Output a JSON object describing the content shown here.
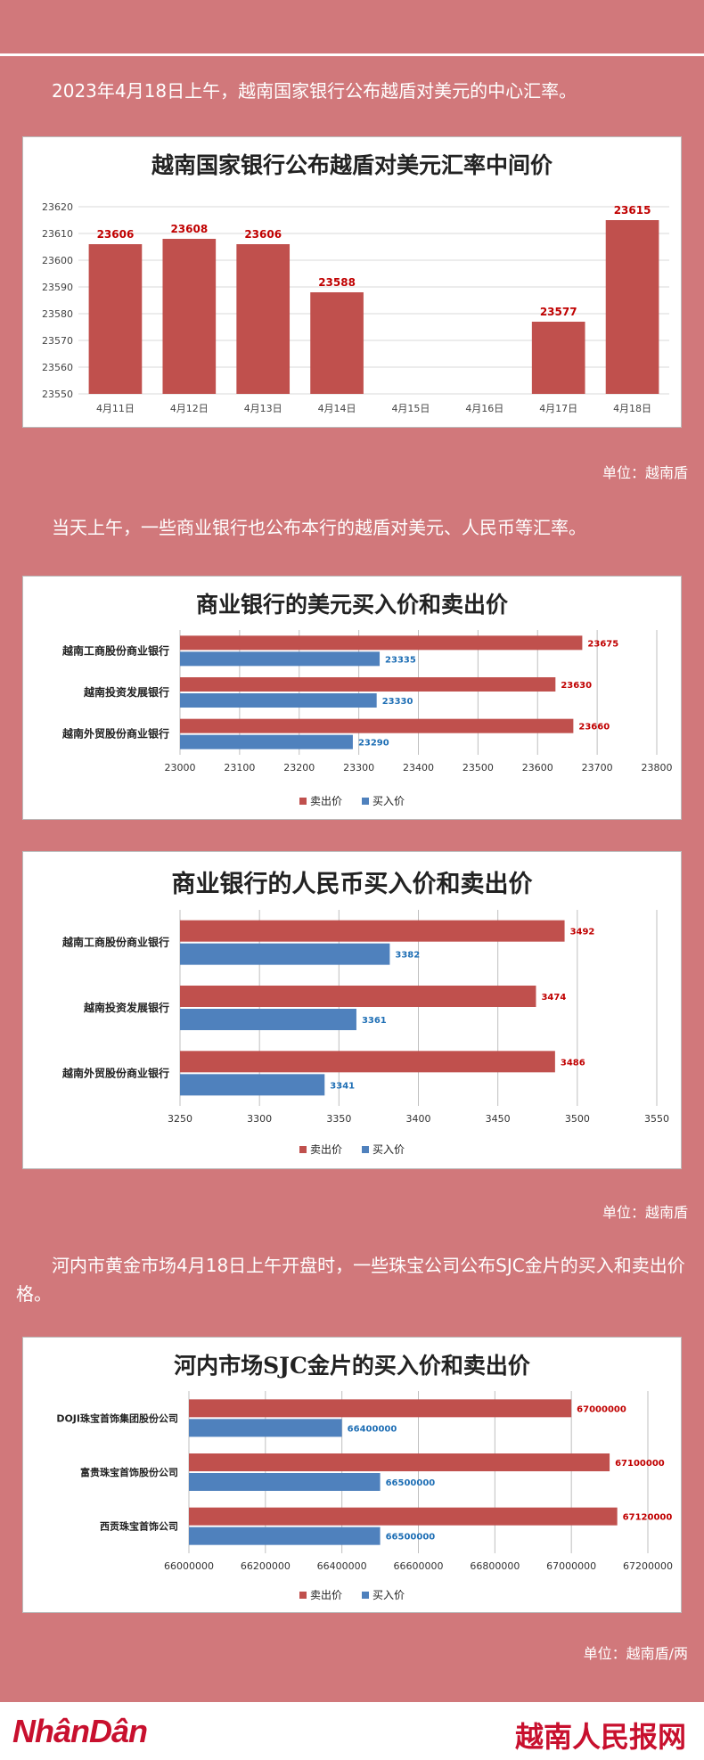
{
  "intro1": "2023年4月18日上午，越南国家银行公布越盾对美元的中心汇率。",
  "unit1": "单位：越南盾",
  "intro2": "当天上午，一些商业银行也公布本行的越盾对美元、人民币等汇率。",
  "unit2": "单位：越南盾",
  "intro3": "河内市黄金市场4月18日上午开盘时，一些珠宝公司公布SJC金片的买入和卖出价格。",
  "unit3": "单位：越南盾/两",
  "footer": {
    "left_logo": "NhânDân",
    "right_logo": "越南人民报网"
  },
  "colors": {
    "sell": "#c0504d",
    "buy": "#4f81bd",
    "background": "#d1787b"
  },
  "chart_data": [
    {
      "type": "bar",
      "title": "越南国家银行公布越盾对美元汇率中间价",
      "categories": [
        "4月11日",
        "4月12日",
        "4月13日",
        "4月14日",
        "4月15日",
        "4月16日",
        "4月17日",
        "4月18日"
      ],
      "values": [
        23606,
        23608,
        23606,
        23588,
        null,
        null,
        23577,
        23615
      ],
      "ylim": [
        23550,
        23620
      ],
      "yticks": [
        23550,
        23560,
        23570,
        23580,
        23590,
        23600,
        23610,
        23620
      ],
      "grid": true
    },
    {
      "type": "bar",
      "orientation": "horizontal",
      "title": "商业银行的美元买入价和卖出价",
      "categories": [
        "越南工商股份商业银行",
        "越南投资发展银行",
        "越南外贸股份商业银行"
      ],
      "series": [
        {
          "name": "卖出价",
          "values": [
            23675,
            23630,
            23660
          ]
        },
        {
          "name": "买入价",
          "values": [
            23335,
            23330,
            23290
          ]
        }
      ],
      "xlim": [
        23000,
        23800
      ],
      "xticks": [
        23000,
        23100,
        23200,
        23300,
        23400,
        23500,
        23600,
        23700,
        23800
      ],
      "legend": "bottom"
    },
    {
      "type": "bar",
      "orientation": "horizontal",
      "title": "商业银行的人民币买入价和卖出价",
      "categories": [
        "越南工商股份商业银行",
        "越南投资发展银行",
        "越南外贸股份商业银行"
      ],
      "series": [
        {
          "name": "卖出价",
          "values": [
            3492,
            3474,
            3486
          ]
        },
        {
          "name": "买入价",
          "values": [
            3382,
            3361,
            3341
          ]
        }
      ],
      "xlim": [
        3250,
        3550
      ],
      "xticks": [
        3250,
        3300,
        3350,
        3400,
        3450,
        3500,
        3550
      ],
      "legend": "bottom"
    },
    {
      "type": "bar",
      "orientation": "horizontal",
      "title": "河内市场SJC金片的买入价和卖出价",
      "categories": [
        "DOJI珠宝首饰集团股份公司",
        "富贵珠宝首饰股份公司",
        "西贡珠宝首饰公司"
      ],
      "series": [
        {
          "name": "卖出价",
          "values": [
            67000000,
            67100000,
            67120000
          ]
        },
        {
          "name": "买入价",
          "values": [
            66400000,
            66500000,
            66500000
          ]
        }
      ],
      "xlim": [
        66000000,
        67200000
      ],
      "xticks": [
        66000000,
        66200000,
        66400000,
        66600000,
        66800000,
        67000000,
        67200000
      ],
      "legend": "bottom"
    }
  ]
}
